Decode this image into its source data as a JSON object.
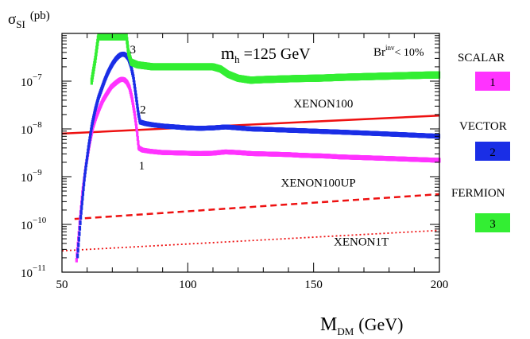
{
  "chart_data": {
    "type": "scatter",
    "title": "",
    "xlabel": {
      "main": "M",
      "sub": "DM",
      "unit": "(GeV)"
    },
    "ylabel": {
      "main": "σ",
      "sub": "SI",
      "unit": "(pb)"
    },
    "xlim": [
      50,
      200
    ],
    "ylim": [
      1e-11,
      1e-06
    ],
    "yscale": "log",
    "grid": false,
    "x_ticks": [
      "50",
      "100",
      "150",
      "200"
    ],
    "y_ticks": [
      {
        "base": "10",
        "exp": "−11",
        "value": 1e-11
      },
      {
        "base": "10",
        "exp": "−10",
        "value": 1e-10
      },
      {
        "base": "10",
        "exp": "−9",
        "value": 1e-09
      },
      {
        "base": "10",
        "exp": "−8",
        "value": 1e-08
      },
      {
        "base": "10",
        "exp": "−7",
        "value": 1e-07
      }
    ],
    "annotation": {
      "mh": {
        "main": "m",
        "sub": "h",
        "rest": " =125 GeV"
      },
      "br": {
        "main": "Br",
        "sup": "inv",
        "rest": "< 10%"
      }
    },
    "legend": {
      "placement": "right-outside",
      "entries": [
        {
          "name": "SCALAR",
          "number": "1",
          "color": "#ff33ff"
        },
        {
          "name": "VECTOR",
          "number": "2",
          "color": "#1a2ee6"
        },
        {
          "name": "FERMION",
          "number": "3",
          "color": "#33ee33"
        }
      ]
    },
    "curve_labels": [
      {
        "text": "1",
        "x": 80.5,
        "y": 1.4e-09
      },
      {
        "text": "2",
        "x": 81,
        "y": 2.1e-08
      },
      {
        "text": "3",
        "x": 77,
        "y": 3.8e-07
      }
    ],
    "series": [
      {
        "number": "1",
        "color": "#ff33ff",
        "x": [
          55.8,
          57.0,
          58.2,
          59.6,
          61.0,
          62.3,
          63.6,
          64.9,
          66.2,
          67.4,
          68.5,
          69.6,
          70.7,
          71.8,
          72.8,
          73.8,
          74.8,
          75.8,
          76.8,
          77.8,
          78.8,
          79.7,
          80.5,
          82,
          85,
          90,
          95,
          100,
          105,
          110,
          115,
          120,
          125,
          130,
          135,
          140,
          145,
          150,
          155,
          160,
          165,
          170,
          175,
          180,
          185,
          190,
          195,
          200
        ],
        "y": [
          1.8e-11,
          1e-10,
          5e-10,
          1.8e-09,
          5e-09,
          1.1e-08,
          1.8e-08,
          2.7e-08,
          3.9e-08,
          5e-08,
          6.2e-08,
          7.6e-08,
          8.6e-08,
          9.6e-08,
          1.05e-07,
          1.1e-07,
          1.07e-07,
          9.5e-08,
          7.5e-08,
          4.5e-08,
          2.2e-08,
          1e-08,
          4e-09,
          3.6e-09,
          3.4e-09,
          3.2e-09,
          3.15e-09,
          3.1e-09,
          3.05e-09,
          3.1e-09,
          3.3e-09,
          3.2e-09,
          3.05e-09,
          3e-09,
          2.95e-09,
          2.9e-09,
          2.8e-09,
          2.75e-09,
          2.7e-09,
          2.6e-09,
          2.55e-09,
          2.5e-09,
          2.45e-09,
          2.4e-09,
          2.35e-09,
          2.3e-09,
          2.25e-09,
          2.2e-09
        ]
      },
      {
        "number": "2",
        "color": "#1a2ee6",
        "x": [
          56.2,
          57.5,
          59.0,
          60.5,
          61.9,
          63.2,
          64.5,
          65.8,
          67.0,
          68.1,
          69.2,
          70.3,
          71.4,
          72.4,
          73.4,
          74.4,
          75.4,
          76.4,
          77.4,
          78.4,
          79.4,
          80.3,
          81,
          83,
          86,
          90,
          95,
          100,
          105,
          110,
          115,
          120,
          125,
          130,
          135,
          140,
          145,
          150,
          155,
          160,
          165,
          170,
          175,
          180,
          185,
          190,
          195,
          200
        ],
        "y": [
          2.2e-11,
          1.5e-10,
          1e-09,
          4e-09,
          1.2e-08,
          2.5e-08,
          4.5e-08,
          7e-08,
          1.05e-07,
          1.45e-07,
          1.9e-07,
          2.4e-07,
          2.9e-07,
          3.3e-07,
          3.6e-07,
          3.7e-07,
          3.5e-07,
          3e-07,
          2.1e-07,
          1.2e-07,
          5e-08,
          2.2e-08,
          1.4e-08,
          1.3e-08,
          1.22e-08,
          1.15e-08,
          1.1e-08,
          1.05e-08,
          1.03e-08,
          1.05e-08,
          1.1e-08,
          1.05e-08,
          1e-08,
          9.8e-09,
          9.6e-09,
          9.4e-09,
          9.2e-09,
          9e-09,
          8.8e-09,
          8.6e-09,
          8.4e-09,
          8.2e-09,
          8e-09,
          7.8e-09,
          7.6e-09,
          7.4e-09,
          7.2e-09,
          7e-09
        ]
      },
      {
        "number": "3",
        "color": "#33ee33",
        "x": [
          61.8,
          63.3,
          64.5,
          75.6,
          76.4,
          77.5,
          80,
          83,
          86,
          90,
          95,
          100,
          105,
          110,
          113,
          116,
          120,
          125,
          130,
          135,
          140,
          145,
          150,
          155,
          160,
          165,
          170,
          175,
          180,
          185,
          190,
          195,
          200
        ],
        "y": [
          1e-07,
          3e-07,
          9e-07,
          9e-07,
          4e-07,
          2.5e-07,
          2.2e-07,
          2.1e-07,
          2e-07,
          2e-07,
          2e-07,
          2e-07,
          2e-07,
          2e-07,
          1.8e-07,
          1.4e-07,
          1.15e-07,
          1.05e-07,
          1.08e-07,
          1.1e-07,
          1.12e-07,
          1.14e-07,
          1.15e-07,
          1.17e-07,
          1.2e-07,
          1.22e-07,
          1.24e-07,
          1.26e-07,
          1.28e-07,
          1.3e-07,
          1.32e-07,
          1.34e-07,
          1.35e-07
        ]
      }
    ],
    "bounds": [
      {
        "name": "XENON100",
        "x": [
          50,
          200
        ],
        "y": [
          8e-09,
          1.9e-08
        ],
        "color": "#ee1111",
        "style": "solid",
        "label_x": 142,
        "label_y": 2.8e-08
      },
      {
        "name": "XENON100UP",
        "x": [
          55,
          200
        ],
        "y": [
          1.3e-10,
          4.3e-10
        ],
        "color": "#ee1111",
        "style": "dashed",
        "label_x": 137,
        "label_y": 6.2e-10
      },
      {
        "name": "XENON1T",
        "x": [
          50,
          200
        ],
        "y": [
          2.8e-11,
          7.5e-11
        ],
        "color": "#ee1111",
        "style": "dotted",
        "label_x": 158,
        "label_y": 3.6e-11
      }
    ]
  }
}
